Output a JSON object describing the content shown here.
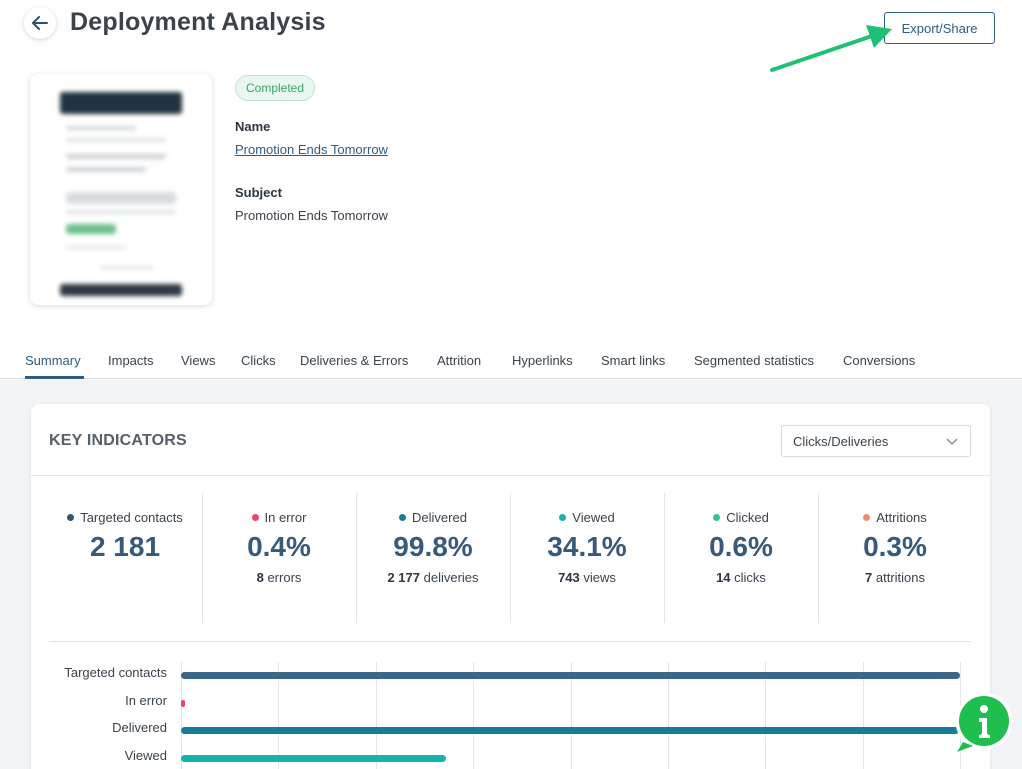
{
  "header": {
    "title": "Deployment Analysis",
    "export_label": "Export/Share"
  },
  "campaign": {
    "status": "Completed",
    "name_label": "Name",
    "name_value": "Promotion Ends Tomorrow",
    "subject_label": "Subject",
    "subject_value": "Promotion Ends Tomorrow"
  },
  "tabs": [
    {
      "label": "Summary",
      "active": true
    },
    {
      "label": "Impacts"
    },
    {
      "label": "Views"
    },
    {
      "label": "Clicks"
    },
    {
      "label": "Deliveries & Errors"
    },
    {
      "label": "Attrition"
    },
    {
      "label": "Hyperlinks"
    },
    {
      "label": "Smart links"
    },
    {
      "label": "Segmented statistics"
    },
    {
      "label": "Conversions"
    }
  ],
  "key_indicators": {
    "title": "KEY INDICATORS",
    "select_value": "Clicks/Deliveries",
    "kpis": [
      {
        "label": "Targeted contacts",
        "value": "2 181",
        "sub_count": "",
        "sub_unit": "",
        "color": "#2f5575"
      },
      {
        "label": "In error",
        "value": "0.4%",
        "sub_count": "8",
        "sub_unit": "errors",
        "color": "#e8476a"
      },
      {
        "label": "Delivered",
        "value": "99.8%",
        "sub_count": "2 177",
        "sub_unit": "deliveries",
        "color": "#167c99"
      },
      {
        "label": "Viewed",
        "value": "34.1%",
        "sub_count": "743",
        "sub_unit": "views",
        "color": "#14b3b0"
      },
      {
        "label": "Clicked",
        "value": "0.6%",
        "sub_count": "14",
        "sub_unit": "clicks",
        "color": "#2ec98a"
      },
      {
        "label": "Attritions",
        "value": "0.3%",
        "sub_count": "7",
        "sub_unit": "attritions",
        "color": "#f08a72"
      }
    ]
  },
  "chart_data": {
    "type": "bar",
    "orientation": "horizontal",
    "categories": [
      "Targeted contacts",
      "In error",
      "Delivered",
      "Viewed"
    ],
    "values": [
      2181,
      8,
      2177,
      743
    ],
    "colors": [
      "#3d6586",
      "#e8476a",
      "#167c99",
      "#14b3b0"
    ],
    "xlim": [
      0,
      2181
    ],
    "grid": true
  }
}
